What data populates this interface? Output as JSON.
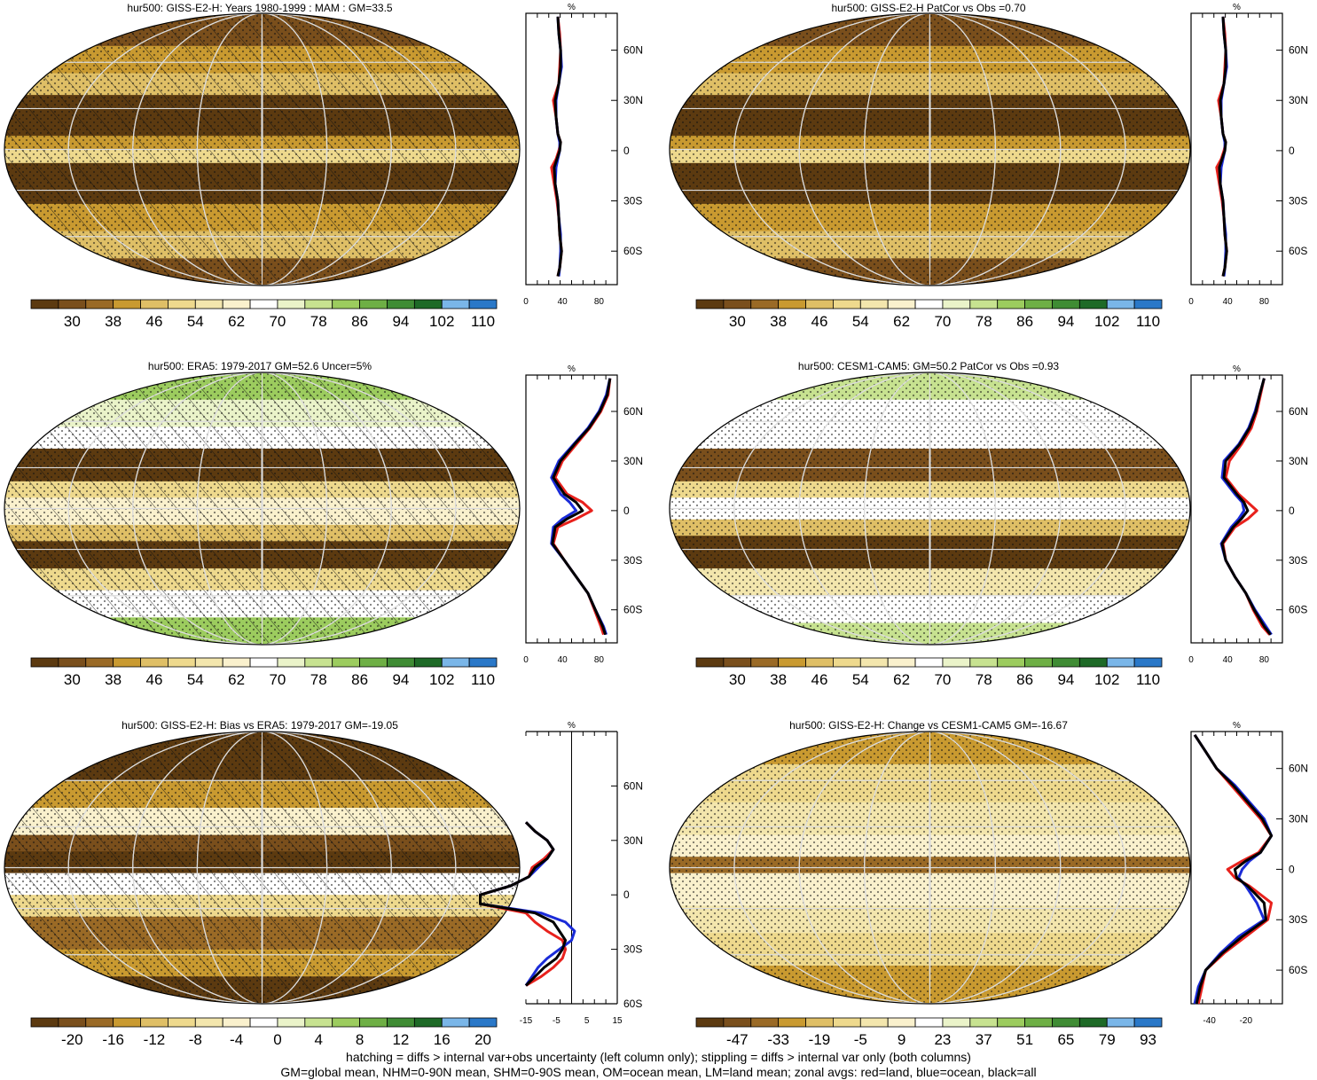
{
  "colors": {
    "abs_scale": [
      "#5c3a10",
      "#7a4f1c",
      "#9a6a26",
      "#c99a30",
      "#dfbf66",
      "#eed98d",
      "#f3e6ad",
      "#faf1cd",
      "#ffffff",
      "#eaf3c9",
      "#c7e290",
      "#9ccc5e",
      "#6eaf45",
      "#3f8c34",
      "#1e6a27",
      "#7ab6e8",
      "#2a78c8"
    ],
    "diff_scale": [
      "#5c3a10",
      "#7a4f1c",
      "#9a6a26",
      "#c99a30",
      "#dfbf66",
      "#eed98d",
      "#f3e6ad",
      "#faf1cd",
      "#ffffff",
      "#eaf3c9",
      "#c7e290",
      "#9ccc5e",
      "#6eaf45",
      "#3f8c34",
      "#1e6a27",
      "#7ab6e8",
      "#2a78c8"
    ],
    "zonal_land": "#e8211c",
    "zonal_ocean": "#1a2bd8",
    "zonal_all": "#000000"
  },
  "zonal_axis": {
    "unit": "%",
    "lat_ticks": [
      "60N",
      "30N",
      "0",
      "30S",
      "60S"
    ]
  },
  "panels": [
    {
      "id": "p1",
      "title": "hur500: GISS-E2-H: Years 1980-1999 : MAM : GM=33.5",
      "map_style": "brown",
      "hatching": true,
      "colorbar_labels": [
        "30",
        "38",
        "46",
        "54",
        "62",
        "70",
        "78",
        "86",
        "94",
        "102",
        "110"
      ],
      "zonal_x_ticks": [
        "0",
        "40",
        "80"
      ],
      "chart_data": {
        "type": "line",
        "xlim": [
          0,
          100
        ],
        "lat": [
          80,
          70,
          60,
          50,
          40,
          30,
          20,
          10,
          5,
          0,
          -5,
          -10,
          -20,
          -30,
          -40,
          -50,
          -60,
          -70,
          -75
        ],
        "series": [
          {
            "values": [
              35,
              37,
              38,
              37,
              36,
              30,
              33,
              35,
              38,
              36,
              33,
              28,
              31,
              34,
              36,
              37,
              39,
              37,
              35
            ]
          },
          {
            "values": [
              35,
              36,
              38,
              39,
              36,
              33,
              33,
              35,
              37,
              37,
              35,
              33,
              32,
              35,
              36,
              38,
              38,
              37,
              36
            ]
          },
          {
            "values": [
              35,
              36,
              38,
              38,
              36,
              32,
              33,
              35,
              38,
              37,
              34,
              31,
              32,
              35,
              36,
              37,
              39,
              37,
              35
            ]
          }
        ]
      }
    },
    {
      "id": "p2",
      "title": "hur500: GISS-E2-H PatCor vs Obs =0.70",
      "map_style": "brown",
      "hatching": false,
      "colorbar_labels": [
        "30",
        "38",
        "46",
        "54",
        "62",
        "70",
        "78",
        "86",
        "94",
        "102",
        "110"
      ],
      "zonal_x_ticks": [
        "0",
        "40",
        "80"
      ],
      "chart_data": {
        "type": "line",
        "xlim": [
          0,
          100
        ],
        "lat": [
          80,
          70,
          60,
          50,
          40,
          30,
          20,
          10,
          5,
          0,
          -5,
          -10,
          -20,
          -30,
          -40,
          -50,
          -60,
          -70,
          -75
        ],
        "series": [
          {
            "values": [
              35,
              37,
              38,
              37,
              36,
              30,
              33,
              35,
              38,
              36,
              33,
              28,
              31,
              34,
              36,
              37,
              39,
              37,
              35
            ]
          },
          {
            "values": [
              35,
              36,
              38,
              39,
              36,
              33,
              33,
              35,
              37,
              37,
              35,
              33,
              32,
              35,
              36,
              38,
              38,
              37,
              36
            ]
          },
          {
            "values": [
              35,
              36,
              38,
              38,
              36,
              32,
              33,
              35,
              38,
              37,
              34,
              31,
              32,
              35,
              36,
              37,
              39,
              37,
              35
            ]
          }
        ]
      }
    },
    {
      "id": "p3",
      "title": "hur500: ERA5: 1979-2017 GM=52.6 Uncer=5%",
      "map_style": "green",
      "hatching": true,
      "colorbar_labels": [
        "30",
        "38",
        "46",
        "54",
        "62",
        "70",
        "78",
        "86",
        "94",
        "102",
        "110"
      ],
      "zonal_x_ticks": [
        "0",
        "40",
        "80"
      ],
      "chart_data": {
        "type": "line",
        "xlim": [
          0,
          100
        ],
        "lat": [
          80,
          70,
          60,
          50,
          40,
          30,
          20,
          10,
          5,
          0,
          -5,
          -10,
          -20,
          -30,
          -40,
          -50,
          -60,
          -70,
          -75
        ],
        "series": [
          {
            "values": [
              92,
              90,
              82,
              70,
              55,
              40,
              32,
              45,
              62,
              72,
              55,
              35,
              30,
              42,
              55,
              68,
              75,
              82,
              85
            ]
          },
          {
            "values": [
              92,
              88,
              80,
              68,
              52,
              36,
              28,
              38,
              48,
              55,
              40,
              30,
              28,
              42,
              55,
              68,
              76,
              85,
              88
            ]
          },
          {
            "values": [
              92,
              89,
              81,
              69,
              53,
              38,
              30,
              42,
              55,
              62,
              45,
              32,
              29,
              42,
              55,
              68,
              76,
              84,
              87
            ]
          }
        ]
      }
    },
    {
      "id": "p4",
      "title": "hur500: CESM1-CAM5: GM=50.2 PatCor vs Obs =0.93",
      "map_style": "light",
      "hatching": false,
      "colorbar_labels": [
        "30",
        "38",
        "46",
        "54",
        "62",
        "70",
        "78",
        "86",
        "94",
        "102",
        "110"
      ],
      "zonal_x_ticks": [
        "0",
        "40",
        "80"
      ],
      "chart_data": {
        "type": "line",
        "xlim": [
          0,
          100
        ],
        "lat": [
          80,
          70,
          60,
          50,
          40,
          30,
          20,
          10,
          5,
          0,
          -5,
          -10,
          -20,
          -30,
          -40,
          -50,
          -60,
          -70,
          -75
        ],
        "series": [
          {
            "values": [
              80,
              76,
              72,
              66,
              55,
              42,
              38,
              52,
              62,
              72,
              62,
              48,
              35,
              38,
              48,
              60,
              68,
              78,
              86
            ]
          },
          {
            "values": [
              80,
              75,
              70,
              63,
              52,
              36,
              34,
              48,
              56,
              58,
              52,
              44,
              33,
              38,
              48,
              60,
              70,
              82,
              88
            ]
          },
          {
            "values": [
              80,
              75,
              71,
              64,
              53,
              38,
              36,
              50,
              58,
              62,
              55,
              46,
              34,
              38,
              48,
              60,
              69,
              80,
              87
            ]
          }
        ]
      }
    },
    {
      "id": "p5",
      "title": "hur500: GISS-E2-H: Bias vs ERA5: 1979-2017 GM=-19.05",
      "map_style": "bias",
      "hatching": true,
      "colorbar_labels": [
        "-20",
        "-16",
        "-12",
        "-8",
        "-4",
        "0",
        "4",
        "8",
        "12",
        "16",
        "20"
      ],
      "zonal_x_ticks": [
        "-15",
        "-5",
        "5",
        "15"
      ],
      "chart_data": {
        "type": "line",
        "xlim": [
          -15,
          15
        ],
        "lat": [
          40,
          35,
          30,
          25,
          20,
          15,
          10,
          5,
          0,
          -5,
          -10,
          -15,
          -20,
          -25,
          -30,
          -35,
          -40,
          -45,
          -50
        ],
        "series": [
          {
            "values": [
              -15,
              -12,
              -8,
              -6,
              -9,
              -13,
              -14,
              -20,
              -30,
              -30,
              -15,
              -12,
              -8,
              -3,
              -2,
              -3,
              -6,
              -10,
              -15
            ]
          },
          {
            "values": [
              -15,
              -12,
              -8,
              -6,
              -8,
              -11,
              -14,
              -20,
              -30,
              -30,
              -10,
              -2,
              1,
              0,
              -4,
              -8,
              -11,
              -13,
              -15
            ]
          },
          {
            "values": [
              -15,
              -12,
              -8,
              -6,
              -8,
              -12,
              -14,
              -20,
              -30,
              -30,
              -12,
              -6,
              -4,
              -2,
              -3,
              -5,
              -9,
              -12,
              -15
            ]
          }
        ]
      }
    },
    {
      "id": "p6",
      "title": "hur500: GISS-E2-H: Change vs CESM1-CAM5 GM=-16.67",
      "map_style": "change",
      "hatching": false,
      "colorbar_labels": [
        "-47",
        "-33",
        "-19",
        "-5",
        "9",
        "23",
        "37",
        "51",
        "65",
        "79",
        "93"
      ],
      "zonal_x_ticks": [
        "-40",
        "-20"
      ],
      "chart_data": {
        "type": "line",
        "xlim": [
          -50,
          0
        ],
        "lat": [
          80,
          70,
          60,
          50,
          40,
          30,
          20,
          10,
          5,
          0,
          -5,
          -10,
          -20,
          -30,
          -40,
          -50,
          -60,
          -70,
          -80
        ],
        "series": [
          {
            "values": [
              -48,
              -42,
              -36,
              -28,
              -20,
              -12,
              -6,
              -13,
              -22,
              -30,
              -26,
              -18,
              -6,
              -8,
              -20,
              -32,
              -42,
              -44,
              -46
            ]
          },
          {
            "values": [
              -48,
              -42,
              -36,
              -26,
              -18,
              -10,
              -6,
              -12,
              -18,
              -22,
              -24,
              -20,
              -14,
              -10,
              -24,
              -34,
              -42,
              -46,
              -48
            ]
          },
          {
            "values": [
              -48,
              -42,
              -36,
              -27,
              -19,
              -11,
              -6,
              -12,
              -20,
              -26,
              -25,
              -19,
              -10,
              -9,
              -22,
              -33,
              -42,
              -45,
              -47
            ]
          }
        ]
      }
    }
  ],
  "footer": {
    "line1": "hatching = diffs > internal var+obs uncertainty (left column only); stippling = diffs > internal var only (both columns)",
    "line2": "GM=global mean, NHM=0-90N mean, SHM=0-90S mean, OM=ocean mean, LM=land mean; zonal avgs: red=land, blue=ocean, black=all"
  }
}
